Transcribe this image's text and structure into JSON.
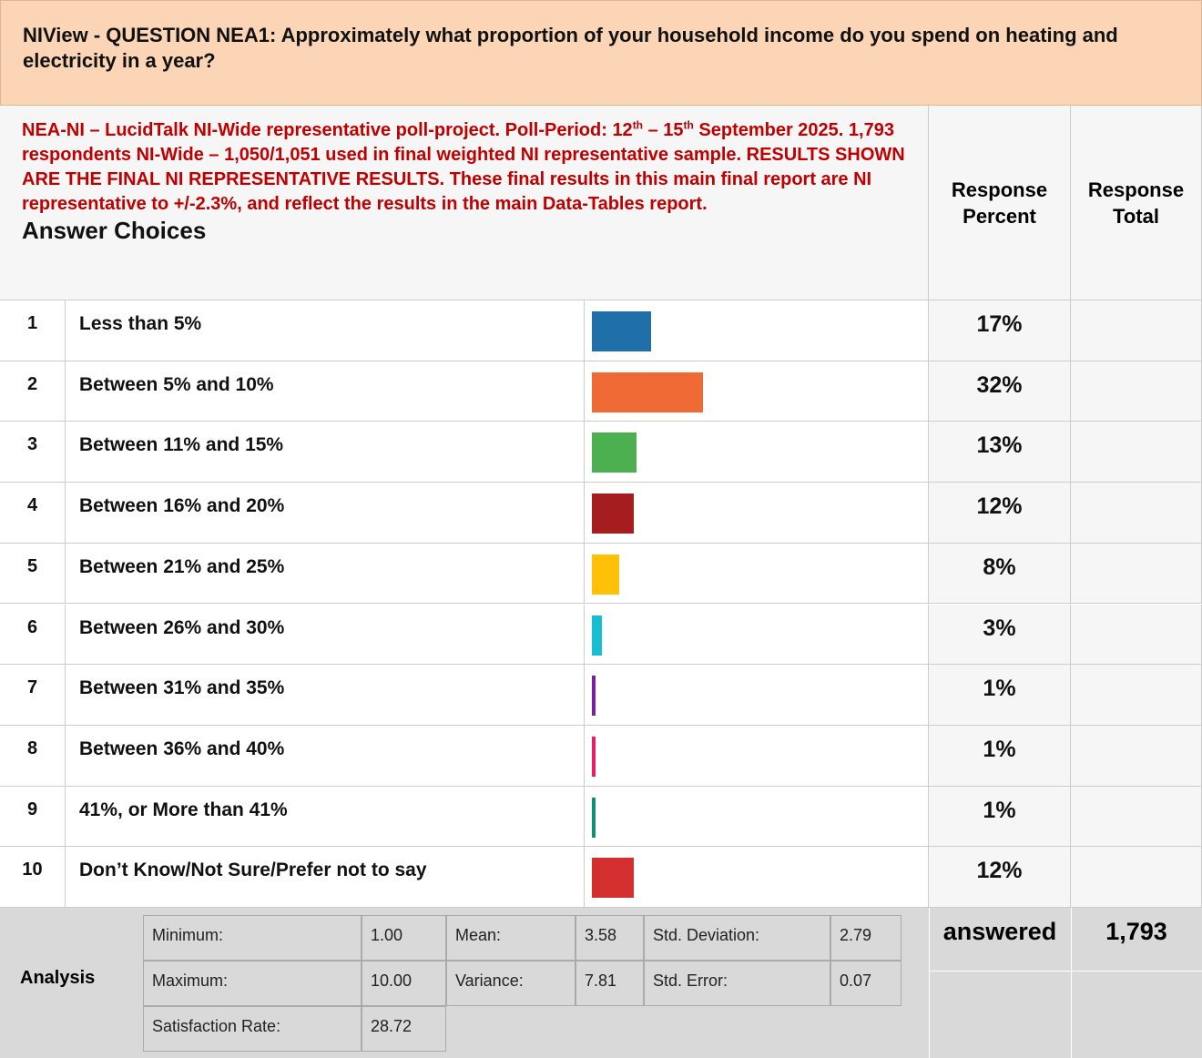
{
  "title": "NIView - QUESTION NEA1: Approximately what proportion of your household income do you spend on heating and electricity in a year?",
  "subtitle_parts": [
    "NEA-NI – LucidTalk NI-Wide representative poll-project. Poll-Period: 12",
    "th",
    " – 15",
    "th",
    " September 2025. 1,793 respondents NI-Wide – 1,050/1,051 used in final weighted NI representative sample. RESULTS SHOWN ARE THE FINAL NI REPRESENTATIVE RESULTS. These final results in this main final report are NI representative to +/-2.3%, and reflect the results in the main Data-Tables report."
  ],
  "answer_choices_header": "Answer Choices",
  "percent_header": "Response Percent",
  "total_header": "Response Total",
  "rows": [
    {
      "index": 1,
      "label": "Less than 5%",
      "percent": 17,
      "percent_label": "17%",
      "color": "#1f6fa8"
    },
    {
      "index": 2,
      "label": "Between 5% and 10%",
      "percent": 32,
      "percent_label": "32%",
      "color": "#f06a35"
    },
    {
      "index": 3,
      "label": "Between 11% and 15%",
      "percent": 13,
      "percent_label": "13%",
      "color": "#4caf50"
    },
    {
      "index": 4,
      "label": "Between 16% and 20%",
      "percent": 12,
      "percent_label": "12%",
      "color": "#a51d1f"
    },
    {
      "index": 5,
      "label": "Between 21% and 25%",
      "percent": 8,
      "percent_label": "8%",
      "color": "#ffc107"
    },
    {
      "index": 6,
      "label": "Between 26% and 30%",
      "percent": 3,
      "percent_label": "3%",
      "color": "#17becf"
    },
    {
      "index": 7,
      "label": "Between 31% and 35%",
      "percent": 1,
      "percent_label": "1%",
      "color": "#7b1fa2"
    },
    {
      "index": 8,
      "label": "Between 36% and 40%",
      "percent": 1,
      "percent_label": "1%",
      "color": "#e91e63"
    },
    {
      "index": 9,
      "label": "41%, or More than 41%",
      "percent": 1,
      "percent_label": "1%",
      "color": "#138d75"
    },
    {
      "index": 10,
      "label": "Don’t Know/Not Sure/Prefer not to say",
      "percent": 12,
      "percent_label": "12%",
      "color": "#d32f2f"
    }
  ],
  "analysis": {
    "label": "Analysis",
    "stats": [
      [
        {
          "name": "Minimum:",
          "value": "1.00"
        },
        {
          "name": "Mean:",
          "value": "3.58"
        },
        {
          "name": "Std. Deviation:",
          "value": "2.79"
        }
      ],
      [
        {
          "name": "Maximum:",
          "value": "10.00"
        },
        {
          "name": "Variance:",
          "value": "7.81"
        },
        {
          "name": "Std. Error:",
          "value": "0.07"
        }
      ],
      [
        {
          "name": "Satisfaction Rate:",
          "value": "28.72"
        }
      ]
    ],
    "answered_label": "answered",
    "answered_total": "1,793"
  }
}
